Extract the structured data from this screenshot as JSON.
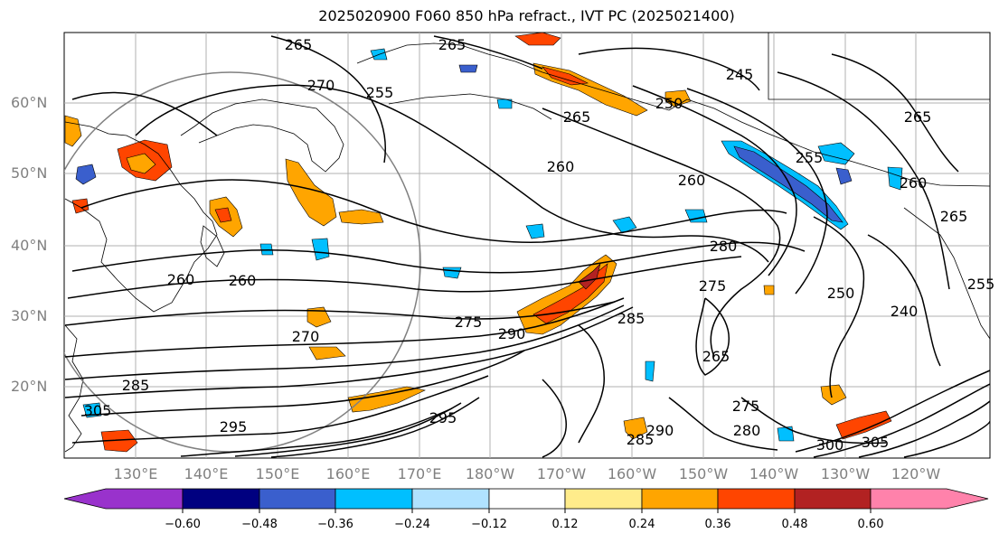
{
  "title": "2025020900 F060 850 hPa refract., IVT PC (2025021400)",
  "lat_labels": [
    "60°N",
    "50°N",
    "40°N",
    "30°N",
    "20°N"
  ],
  "lon_labels": [
    "130°E",
    "140°E",
    "150°E",
    "160°E",
    "170°E",
    "180°W",
    "170°W",
    "160°W",
    "150°W",
    "140°W",
    "130°W",
    "120°W"
  ],
  "contour_labels": [
    "265",
    "265",
    "270",
    "265",
    "255",
    "245",
    "250",
    "265",
    "260",
    "260",
    "280",
    "275",
    "270",
    "275",
    "285",
    "290",
    "265",
    "275",
    "280",
    "285",
    "290",
    "295",
    "295",
    "305",
    "250",
    "255",
    "240",
    "255",
    "305",
    "300",
    "260",
    "260",
    "265",
    "285",
    "260"
  ],
  "colorbar": {
    "ticks": [
      "−0.60",
      "−0.48",
      "−0.36",
      "−0.24",
      "−0.12",
      "0.12",
      "0.24",
      "0.36",
      "0.48",
      "0.60"
    ],
    "colors": [
      "#9932cc",
      "#000080",
      "#3a5fcd",
      "#00bfff",
      "#b0e2ff",
      "#ffffff",
      "#ffec8b",
      "#ffa500",
      "#ff4500",
      "#b22222",
      "#ff82ab"
    ]
  }
}
